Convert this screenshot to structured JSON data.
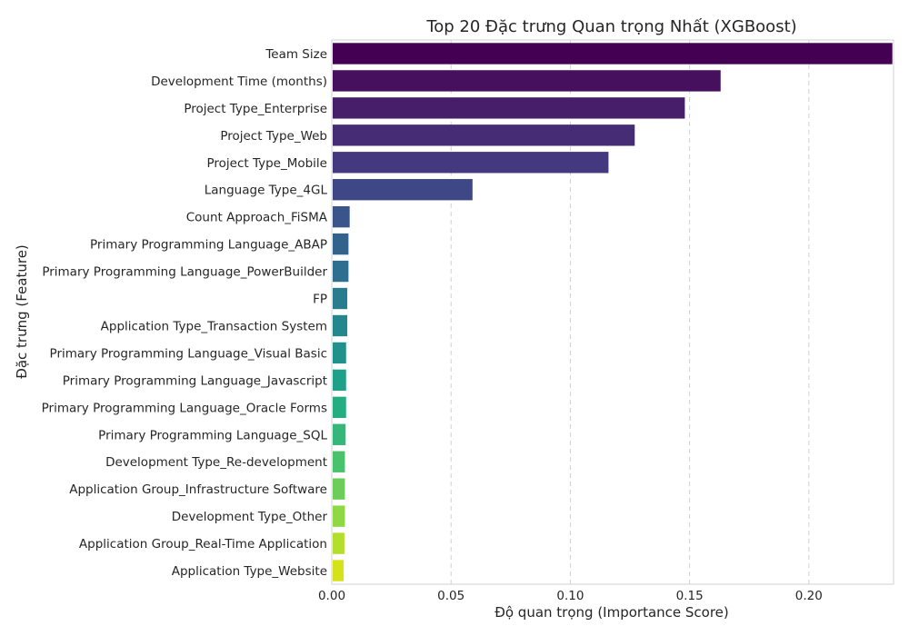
{
  "chart_data": {
    "type": "bar",
    "orientation": "horizontal",
    "title": "Top 20 Đặc trưng Quan trọng Nhất (XGBoost)",
    "xlabel": "Độ quan trọng (Importance Score)",
    "ylabel": "Đặc trưng (Feature)",
    "xlim": [
      0,
      0.2355
    ],
    "xticks": [
      0.0,
      0.05,
      0.1,
      0.15,
      0.2
    ],
    "xtick_labels": [
      "0.00",
      "0.05",
      "0.10",
      "0.15",
      "0.20"
    ],
    "grid": "vertical dashed",
    "colormap": "viridis",
    "categories": [
      "Team Size",
      "Development Time (months)",
      "Project Type_Enterprise",
      "Project Type_Web",
      "Project Type_Mobile",
      "Language Type_4GL",
      "Count Approach_FiSMA",
      "Primary Programming Language_ABAP",
      "Primary Programming Language_PowerBuilder",
      "FP",
      "Application Type_Transaction System",
      "Primary Programming Language_Visual Basic",
      "Primary Programming Language_Javascript",
      "Primary Programming Language_Oracle Forms",
      "Primary Programming Language_SQL",
      "Development Type_Re-development",
      "Application Group_Infrastructure Software",
      "Development Type_Other",
      "Application Group_Real-Time Application",
      "Application Type_Website"
    ],
    "values": [
      0.235,
      0.163,
      0.148,
      0.127,
      0.116,
      0.059,
      0.0075,
      0.007,
      0.007,
      0.0065,
      0.0065,
      0.006,
      0.006,
      0.006,
      0.0058,
      0.0055,
      0.0055,
      0.0055,
      0.0053,
      0.005
    ],
    "colors": [
      "#440154",
      "#46105f",
      "#471e6a",
      "#462c75",
      "#44397e",
      "#3f4886",
      "#39558c",
      "#33628d",
      "#2e6e8e",
      "#297b8e",
      "#25878e",
      "#21918c",
      "#1fa088",
      "#25ad82",
      "#35b779",
      "#4ac16d",
      "#6ccd5a",
      "#8fd744",
      "#b4de2c",
      "#d5e21a"
    ]
  }
}
